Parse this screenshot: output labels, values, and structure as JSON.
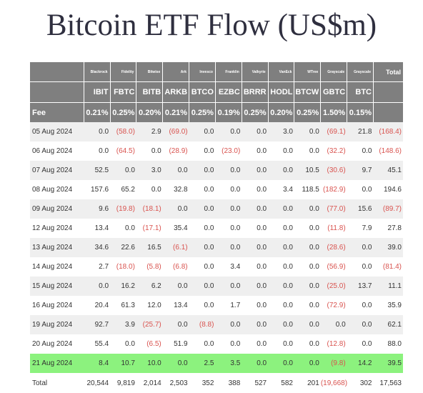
{
  "title": "Bitcoin ETF Flow (US$m)",
  "colors": {
    "header_bg": "#7f7f7f",
    "negative": "#d9534f",
    "highlight_row": "#8cf27e",
    "row_alt": "#efefef"
  },
  "columns": [
    {
      "issuer": "Blackrock",
      "ticker": "IBIT",
      "fee": "0.21%"
    },
    {
      "issuer": "Fidelity",
      "ticker": "FBTC",
      "fee": "0.25%"
    },
    {
      "issuer": "Bitwise",
      "ticker": "BITB",
      "fee": "0.20%"
    },
    {
      "issuer": "Ark",
      "ticker": "ARKB",
      "fee": "0.21%"
    },
    {
      "issuer": "Invesco",
      "ticker": "BTCO",
      "fee": "0.25%"
    },
    {
      "issuer": "Franklin",
      "ticker": "EZBC",
      "fee": "0.19%"
    },
    {
      "issuer": "Valkyrie",
      "ticker": "BRRR",
      "fee": "0.25%"
    },
    {
      "issuer": "VanEck",
      "ticker": "HODL",
      "fee": "0.20%"
    },
    {
      "issuer": "WTree",
      "ticker": "BTCW",
      "fee": "0.25%"
    },
    {
      "issuer": "Grayscale",
      "ticker": "GBTC",
      "fee": "1.50%"
    },
    {
      "issuer": "Grayscale",
      "ticker": "BTC",
      "fee": "0.15%"
    }
  ],
  "total_label": "Total",
  "fee_label": "Fee",
  "rows": [
    {
      "date": "05 Aug 2024",
      "values": [
        "0.0",
        "(58.0)",
        "2.9",
        "(69.0)",
        "0.0",
        "0.0",
        "0.0",
        "3.0",
        "0.0",
        "(69.1)",
        "21.8",
        "(168.4)"
      ]
    },
    {
      "date": "06 Aug 2024",
      "values": [
        "0.0",
        "(64.5)",
        "0.0",
        "(28.9)",
        "0.0",
        "(23.0)",
        "0.0",
        "0.0",
        "0.0",
        "(32.2)",
        "0.0",
        "(148.6)"
      ]
    },
    {
      "date": "07 Aug 2024",
      "values": [
        "52.5",
        "0.0",
        "3.0",
        "0.0",
        "0.0",
        "0.0",
        "0.0",
        "0.0",
        "10.5",
        "(30.6)",
        "9.7",
        "45.1"
      ]
    },
    {
      "date": "08 Aug 2024",
      "values": [
        "157.6",
        "65.2",
        "0.0",
        "32.8",
        "0.0",
        "0.0",
        "0.0",
        "3.4",
        "118.5",
        "(182.9)",
        "0.0",
        "194.6"
      ]
    },
    {
      "date": "09 Aug 2024",
      "values": [
        "9.6",
        "(19.8)",
        "(18.1)",
        "0.0",
        "0.0",
        "0.0",
        "0.0",
        "0.0",
        "0.0",
        "(77.0)",
        "15.6",
        "(89.7)"
      ]
    },
    {
      "date": "12 Aug 2024",
      "values": [
        "13.4",
        "0.0",
        "(17.1)",
        "35.4",
        "0.0",
        "0.0",
        "0.0",
        "0.0",
        "0.0",
        "(11.8)",
        "7.9",
        "27.8"
      ]
    },
    {
      "date": "13 Aug 2024",
      "values": [
        "34.6",
        "22.6",
        "16.5",
        "(6.1)",
        "0.0",
        "0.0",
        "0.0",
        "0.0",
        "0.0",
        "(28.6)",
        "0.0",
        "39.0"
      ]
    },
    {
      "date": "14 Aug 2024",
      "values": [
        "2.7",
        "(18.0)",
        "(5.8)",
        "(6.8)",
        "0.0",
        "3.4",
        "0.0",
        "0.0",
        "0.0",
        "(56.9)",
        "0.0",
        "(81.4)"
      ]
    },
    {
      "date": "15 Aug 2024",
      "values": [
        "0.0",
        "16.2",
        "6.2",
        "0.0",
        "0.0",
        "0.0",
        "0.0",
        "0.0",
        "0.0",
        "(25.0)",
        "13.7",
        "11.1"
      ]
    },
    {
      "date": "16 Aug 2024",
      "values": [
        "20.4",
        "61.3",
        "12.0",
        "13.4",
        "0.0",
        "1.7",
        "0.0",
        "0.0",
        "0.0",
        "(72.9)",
        "0.0",
        "35.9"
      ]
    },
    {
      "date": "19 Aug 2024",
      "values": [
        "92.7",
        "3.9",
        "(25.7)",
        "0.0",
        "(8.8)",
        "0.0",
        "0.0",
        "0.0",
        "0.0",
        "0.0",
        "0.0",
        "62.1"
      ]
    },
    {
      "date": "20 Aug 2024",
      "values": [
        "55.4",
        "0.0",
        "(6.5)",
        "51.9",
        "0.0",
        "0.0",
        "0.0",
        "0.0",
        "0.0",
        "(12.8)",
        "0.0",
        "88.0"
      ]
    },
    {
      "date": "21 Aug 2024",
      "highlight": true,
      "values": [
        "8.4",
        "10.7",
        "10.0",
        "0.0",
        "2.5",
        "3.5",
        "0.0",
        "0.0",
        "0.0",
        "(9.8)",
        "14.2",
        "39.5"
      ]
    }
  ],
  "totals": {
    "label": "Total",
    "values": [
      "20,544",
      "9,819",
      "2,014",
      "2,503",
      "352",
      "388",
      "527",
      "582",
      "201",
      "(19,668)",
      "302",
      "17,563"
    ]
  }
}
